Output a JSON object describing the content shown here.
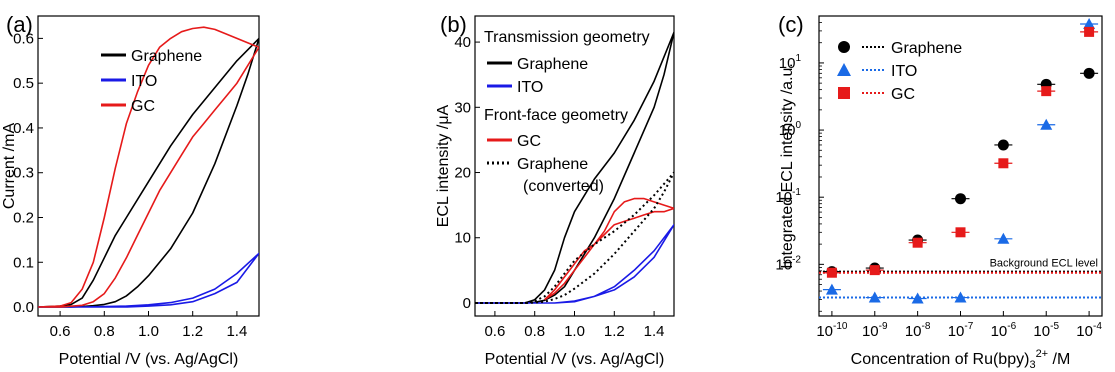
{
  "chart_data": [
    {
      "type": "line",
      "panel_label": "(a)",
      "xlabel": "Potential /V (vs. Ag/AgCl)",
      "ylabel": "Current /mA",
      "xlim": [
        0.5,
        1.5
      ],
      "ylim": [
        -0.02,
        0.65
      ],
      "xticks": [
        "0.6",
        "0.8",
        "1.0",
        "1.2",
        "1.4"
      ],
      "xtick_values": [
        0.6,
        0.8,
        1.0,
        1.2,
        1.4
      ],
      "yticks": [
        "0.0",
        "0.1",
        "0.2",
        "0.3",
        "0.4",
        "0.5",
        "0.6"
      ],
      "ytick_values": [
        0.0,
        0.1,
        0.2,
        0.3,
        0.4,
        0.5,
        0.6
      ],
      "legend_position": "top-left",
      "series": [
        {
          "name": "Graphene",
          "color": "#000000",
          "dash": "solid",
          "x": [
            0.5,
            0.6,
            0.65,
            0.7,
            0.75,
            0.8,
            0.85,
            0.9,
            1.0,
            1.1,
            1.2,
            1.3,
            1.4,
            1.5,
            1.45,
            1.4,
            1.3,
            1.2,
            1.1,
            1.0,
            0.95,
            0.9,
            0.85,
            0.8,
            0.75,
            0.7,
            0.65,
            0.6,
            0.5
          ],
          "y": [
            0.0,
            0.002,
            0.006,
            0.02,
            0.06,
            0.11,
            0.16,
            0.2,
            0.28,
            0.36,
            0.43,
            0.49,
            0.55,
            0.6,
            0.52,
            0.45,
            0.32,
            0.21,
            0.13,
            0.07,
            0.045,
            0.025,
            0.012,
            0.006,
            0.003,
            0.001,
            0.0,
            0.0,
            0.0
          ]
        },
        {
          "name": "ITO",
          "color": "#1a1ae6",
          "dash": "solid",
          "x": [
            0.5,
            0.7,
            0.9,
            1.0,
            1.1,
            1.2,
            1.3,
            1.4,
            1.5,
            1.4,
            1.3,
            1.2,
            1.1,
            1.0,
            0.9,
            0.7,
            0.5
          ],
          "y": [
            0.0,
            0.0,
            0.002,
            0.005,
            0.01,
            0.02,
            0.04,
            0.075,
            0.12,
            0.055,
            0.03,
            0.012,
            0.005,
            0.002,
            0.0,
            0.0,
            0.0
          ]
        },
        {
          "name": "GC",
          "color": "#e61a1a",
          "dash": "solid",
          "x": [
            0.5,
            0.6,
            0.65,
            0.7,
            0.75,
            0.8,
            0.85,
            0.9,
            0.95,
            1.0,
            1.05,
            1.1,
            1.15,
            1.2,
            1.25,
            1.3,
            1.35,
            1.4,
            1.45,
            1.5,
            1.45,
            1.4,
            1.35,
            1.3,
            1.25,
            1.2,
            1.15,
            1.1,
            1.05,
            1.0,
            0.95,
            0.9,
            0.85,
            0.8,
            0.75,
            0.7,
            0.6,
            0.5
          ],
          "y": [
            0.0,
            0.002,
            0.01,
            0.04,
            0.1,
            0.2,
            0.31,
            0.41,
            0.48,
            0.54,
            0.58,
            0.6,
            0.615,
            0.622,
            0.625,
            0.62,
            0.61,
            0.6,
            0.59,
            0.58,
            0.54,
            0.5,
            0.47,
            0.44,
            0.41,
            0.38,
            0.34,
            0.3,
            0.26,
            0.21,
            0.16,
            0.11,
            0.065,
            0.03,
            0.012,
            0.004,
            0.0,
            0.0
          ]
        }
      ]
    },
    {
      "type": "line",
      "panel_label": "(b)",
      "xlabel": "Potential /V (vs. Ag/AgCl)",
      "ylabel": "ECL intensity /μA",
      "xlim": [
        0.5,
        1.5
      ],
      "ylim": [
        -2,
        44
      ],
      "xticks": [
        "0.6",
        "0.8",
        "1.0",
        "1.2",
        "1.4"
      ],
      "xtick_values": [
        0.6,
        0.8,
        1.0,
        1.2,
        1.4
      ],
      "yticks": [
        "0",
        "10",
        "20",
        "30",
        "40"
      ],
      "ytick_values": [
        0,
        10,
        20,
        30,
        40
      ],
      "legend_position": "top-left",
      "legend_groups": [
        "Transmission geometry",
        "Front-face geometry"
      ],
      "series": [
        {
          "name": "Graphene",
          "color": "#000000",
          "dash": "solid",
          "x": [
            0.5,
            0.75,
            0.8,
            0.85,
            0.9,
            0.95,
            1.0,
            1.1,
            1.2,
            1.3,
            1.4,
            1.5,
            1.45,
            1.4,
            1.3,
            1.2,
            1.1,
            1.0,
            0.95,
            0.9,
            0.85,
            0.8,
            0.75,
            0.5
          ],
          "y": [
            0,
            0,
            0.5,
            2,
            5,
            10,
            14,
            19,
            23,
            28,
            34,
            41.5,
            35,
            30,
            23,
            16,
            10,
            5,
            2.5,
            1.2,
            0.4,
            0.1,
            0,
            0
          ]
        },
        {
          "name": "ITO",
          "color": "#1a1ae6",
          "dash": "solid",
          "x": [
            0.5,
            0.9,
            1.0,
            1.1,
            1.2,
            1.3,
            1.4,
            1.5,
            1.4,
            1.3,
            1.2,
            1.1,
            1.0,
            0.9,
            0.5
          ],
          "y": [
            0,
            0,
            0.3,
            1,
            2,
            4,
            7,
            12,
            8,
            5,
            2.5,
            1,
            0.2,
            0,
            0
          ]
        },
        {
          "name": "GC",
          "color": "#e61a1a",
          "dash": "solid",
          "x": [
            0.85,
            0.9,
            0.95,
            1.0,
            1.05,
            1.1,
            1.15,
            1.2,
            1.25,
            1.3,
            1.35,
            1.4,
            1.45,
            1.5,
            1.45,
            1.4,
            1.35,
            1.3,
            1.25,
            1.2,
            1.15,
            1.1,
            1.05,
            1.0,
            0.95,
            0.9,
            0.85
          ],
          "y": [
            0.5,
            2,
            4,
            6,
            8,
            9,
            11,
            14,
            15.5,
            16,
            16,
            15.5,
            15,
            14.5,
            14,
            14,
            13.5,
            13,
            12.5,
            12,
            10.5,
            9,
            7,
            5,
            3,
            1.5,
            0.5
          ]
        },
        {
          "name": "Graphene (converted)",
          "color": "#000000",
          "dash": "dotted",
          "x": [
            0.5,
            0.75,
            0.8,
            0.85,
            0.9,
            0.95,
            1.0,
            1.1,
            1.2,
            1.3,
            1.4,
            1.5,
            1.45,
            1.4,
            1.3,
            1.2,
            1.1,
            1.0,
            0.95,
            0.9,
            0.85,
            0.8,
            0.75,
            0.5
          ],
          "y": [
            0,
            0,
            0.3,
            1,
            2.5,
            4.5,
            6.5,
            9,
            11,
            13.5,
            16.5,
            20,
            17,
            14.5,
            11,
            7.5,
            4.5,
            2.2,
            1.2,
            0.6,
            0.2,
            0.05,
            0,
            0
          ]
        }
      ]
    },
    {
      "type": "scatter",
      "panel_label": "(c)",
      "xlabel": "Concentration of Ru(bpy)",
      "xlabel_sub": "3",
      "xlabel_sup": "2+",
      "xlabel_unit": " /M",
      "ylabel": "Integrated ECL intensity /a.u.",
      "xscale": "log",
      "yscale": "log",
      "xlim": [
        5e-11,
        0.0002
      ],
      "ylim": [
        0.0017,
        50
      ],
      "xtick_values": [
        1e-10,
        1e-09,
        1e-08,
        1e-07,
        1e-06,
        1e-05,
        0.0001
      ],
      "xtick_exps": [
        "-10",
        "-9",
        "-8",
        "-7",
        "-6",
        "-5",
        "-4"
      ],
      "ytick_values": [
        0.01,
        0.1,
        1,
        10
      ],
      "ytick_exps": [
        "-2",
        "-1",
        "0",
        "1"
      ],
      "tick_base": "10",
      "legend_position": "top-left",
      "annotation": "Background ECL level",
      "series": [
        {
          "name": "Graphene",
          "marker": "circle",
          "color": "#000000",
          "x": [
            1e-10,
            1e-09,
            1e-08,
            1e-07,
            1e-06,
            1e-05,
            0.0001
          ],
          "y": [
            0.0078,
            0.0088,
            0.023,
            0.095,
            0.6,
            4.8,
            7
          ],
          "background": 0.0078,
          "background_style": "dotted"
        },
        {
          "name": "ITO",
          "marker": "triangle",
          "color": "#1a6ae6",
          "x": [
            1e-10,
            1e-09,
            1e-08,
            1e-07,
            1e-06,
            1e-05,
            0.0001
          ],
          "y": [
            0.0042,
            0.0032,
            0.0031,
            0.0032,
            0.024,
            1.2,
            38
          ],
          "background": 0.0032,
          "background_style": "dotted"
        },
        {
          "name": "GC",
          "marker": "square",
          "color": "#e61a1a",
          "x": [
            1e-10,
            1e-09,
            1e-08,
            1e-07,
            1e-06,
            1e-05,
            0.0001
          ],
          "y": [
            0.0075,
            0.0082,
            0.021,
            0.03,
            0.32,
            3.8,
            29
          ],
          "background": 0.0075,
          "background_style": "dotted"
        }
      ]
    }
  ]
}
